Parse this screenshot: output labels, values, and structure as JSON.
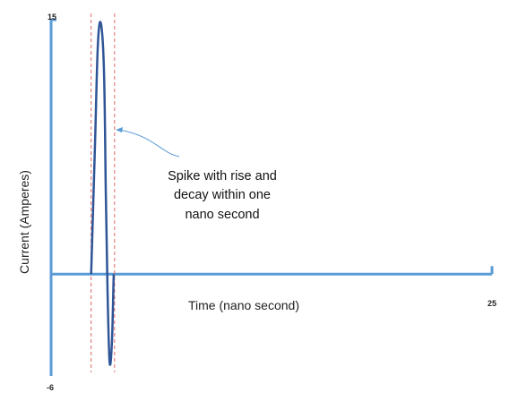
{
  "chart_data": {
    "type": "line",
    "title": "",
    "xlabel": "Time (nano second)",
    "ylabel": "Current (Amperes)",
    "xlim": [
      0,
      25
    ],
    "ylim": [
      -6,
      15
    ],
    "x_tick_labels": [
      "25"
    ],
    "y_tick_labels": [
      "15",
      "-6"
    ],
    "series": [
      {
        "values_x": [
          2.27,
          2.5,
          2.65,
          2.82,
          3.0,
          3.1,
          3.2,
          3.32,
          3.45,
          3.55
        ],
        "values_y": [
          0,
          8,
          13.5,
          14.8,
          12,
          5,
          -1,
          -5.2,
          -4,
          0
        ],
        "color": "#2f5597"
      }
    ],
    "reference_lines": {
      "x": [
        2.27,
        3.6
      ],
      "color": "#e06666",
      "style": "dashed"
    },
    "annotation": {
      "lines": [
        "Spike with rise and",
        "decay within one",
        "nano second"
      ],
      "arrow_color": "#5b9bd5"
    },
    "colors": {
      "axis": "#5b9bd5"
    },
    "grid": false,
    "legend": "none"
  }
}
